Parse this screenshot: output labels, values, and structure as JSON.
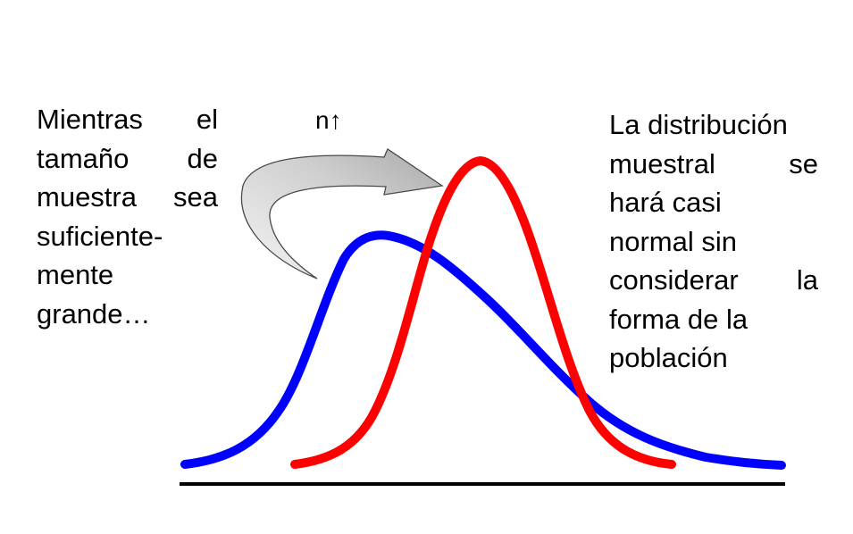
{
  "left_text": {
    "lines": [
      "Mientras el",
      "tamaño de",
      "muestra sea",
      "suficiente-",
      "mente",
      "grande…"
    ]
  },
  "right_text": {
    "lines": [
      "La distribución",
      "muestral se",
      "hará casi",
      "normal sin",
      "considerar la",
      "forma de la",
      "población"
    ]
  },
  "arrow_label": "n↑",
  "colors": {
    "population_curve": "#0000ff",
    "sampling_curve": "#ff0000",
    "axis": "#000000",
    "arrow_fill": "#c8c8c8"
  },
  "icons": {
    "curved_arrow": "curved-arrow-icon"
  }
}
